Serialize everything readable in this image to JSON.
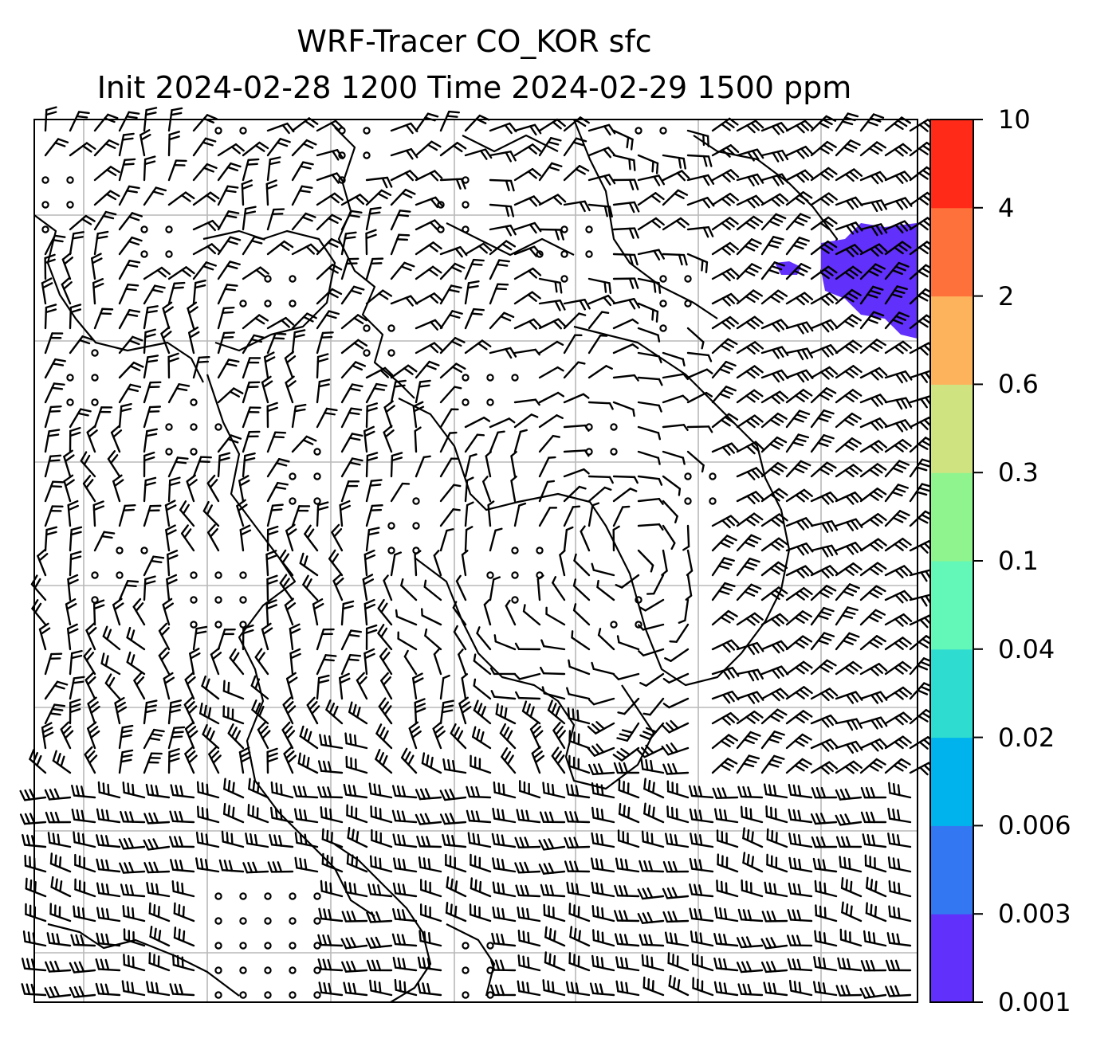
{
  "title": {
    "line1": "WRF-Tracer CO_KOR sfc",
    "line2": "Init 2024-02-28 1200 Time 2024-02-29 1500 ppm"
  },
  "colorbar": {
    "levels": [
      "0.001",
      "0.003",
      "0.006",
      "0.02",
      "0.04",
      "0.1",
      "0.3",
      "0.6",
      "2",
      "4",
      "10"
    ],
    "colors": [
      "#6230fb",
      "#3378f2",
      "#00b3ec",
      "#2fdcd0",
      "#63f8b8",
      "#8ff48d",
      "#d0e381",
      "#fdb25c",
      "#ff713a",
      "#ff2b18"
    ]
  },
  "map": {
    "plume_color": "#6230fb",
    "grid_color": "#b8b8b8",
    "barb_color": "#000000"
  }
}
